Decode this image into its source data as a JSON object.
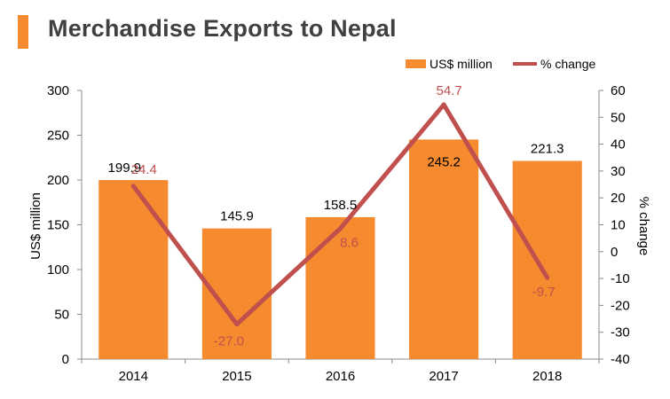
{
  "title": "Merchandise Exports to Nepal",
  "colors": {
    "bar": "#f58a2e",
    "line": "#c0504d",
    "title_block": "#f58a2e",
    "axis": "#8c8c8c",
    "text": "#000000",
    "line_label": "#c0504d"
  },
  "legend": {
    "bar_label": "US$ million",
    "line_label": "% change",
    "position": "top-right"
  },
  "chart_data": {
    "type": "bar",
    "title": "Merchandise Exports to Nepal",
    "categories": [
      "2014",
      "2015",
      "2016",
      "2017",
      "2018"
    ],
    "series": [
      {
        "name": "US$ million",
        "type": "bar",
        "axis": "left",
        "values": [
          199.9,
          145.9,
          158.5,
          245.2,
          221.3
        ],
        "labels": [
          "199.9",
          "145.9",
          "158.5",
          "245.2",
          "221.3"
        ]
      },
      {
        "name": "% change",
        "type": "line",
        "axis": "right",
        "values": [
          24.4,
          -27.0,
          8.6,
          54.7,
          -9.7
        ],
        "labels": [
          "24.4",
          "-27.0",
          "8.6",
          "54.7",
          "-9.7"
        ]
      }
    ],
    "y_left": {
      "label": "US$ million",
      "range": [
        0,
        300
      ],
      "ticks": [
        "0",
        "50",
        "100",
        "150",
        "200",
        "250",
        "300"
      ]
    },
    "y_right": {
      "label": "% change",
      "range": [
        -40,
        60
      ],
      "ticks": [
        "-40",
        "-30",
        "-20",
        "-10",
        "0",
        "10",
        "20",
        "30",
        "40",
        "50",
        "60"
      ]
    },
    "grid": false
  }
}
